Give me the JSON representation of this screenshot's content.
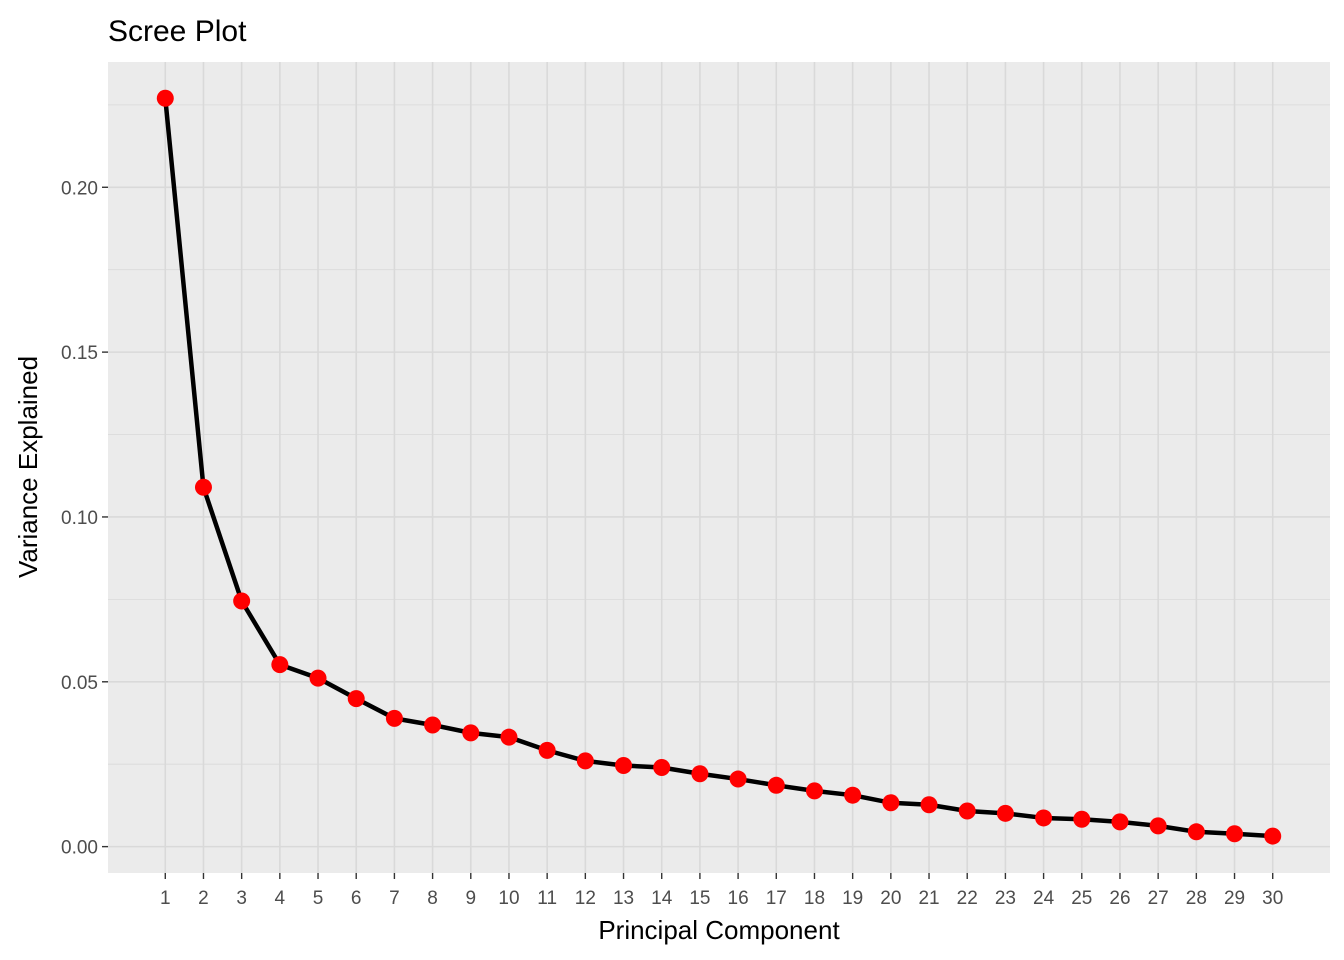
{
  "chart_data": {
    "type": "line",
    "title": "Scree Plot",
    "xlabel": "Principal Component",
    "ylabel": "Variance Explained",
    "x": [
      1,
      2,
      3,
      4,
      5,
      6,
      7,
      8,
      9,
      10,
      11,
      12,
      13,
      14,
      15,
      16,
      17,
      18,
      19,
      20,
      21,
      22,
      23,
      24,
      25,
      26,
      27,
      28,
      29,
      30
    ],
    "series": [
      {
        "values": [
          0.227,
          0.109,
          0.0745,
          0.0552,
          0.0511,
          0.0449,
          0.0389,
          0.0369,
          0.0345,
          0.0332,
          0.0292,
          0.026,
          0.0246,
          0.024,
          0.0221,
          0.0205,
          0.0186,
          0.0169,
          0.0156,
          0.0133,
          0.0127,
          0.0108,
          0.0101,
          0.0087,
          0.0083,
          0.0075,
          0.0063,
          0.0045,
          0.0039,
          0.0032
        ],
        "line_color": "#000000",
        "point_color": "#ff0000"
      }
    ],
    "xticks": [
      1,
      2,
      3,
      4,
      5,
      6,
      7,
      8,
      9,
      10,
      11,
      12,
      13,
      14,
      15,
      16,
      17,
      18,
      19,
      20,
      21,
      22,
      23,
      24,
      25,
      26,
      27,
      28,
      29,
      30
    ],
    "yticks": [
      "0.00",
      "0.05",
      "0.10",
      "0.15",
      "0.20"
    ],
    "ylim": [
      -0.008,
      0.238
    ],
    "xlim": [
      -0.5,
      31.5
    ],
    "grid": true,
    "legend": "none",
    "background": "#ebebeb",
    "grid_color": "#d9d9d9"
  }
}
